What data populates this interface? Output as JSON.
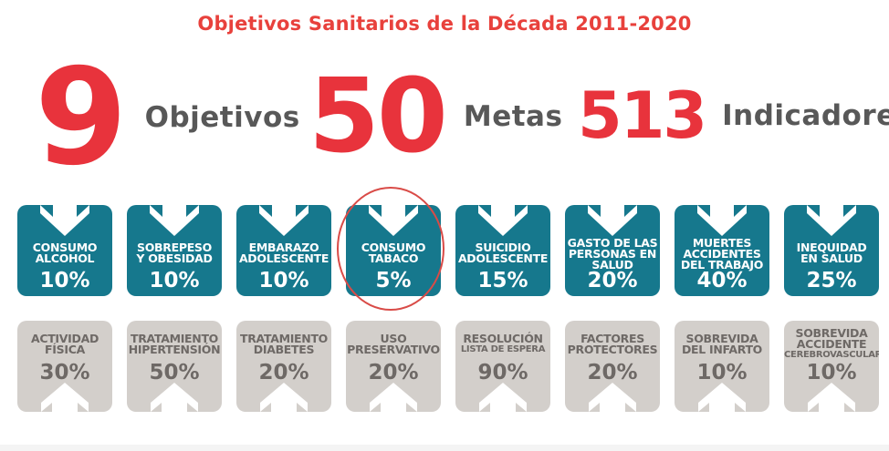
{
  "title": "Objetivos Sanitarios de la Década 2011-2020",
  "stats": [
    {
      "number": "9",
      "label": "Objetivos"
    },
    {
      "number": "50",
      "label": "Metas"
    },
    {
      "number": "513",
      "label": "Indicadores"
    }
  ],
  "colors": {
    "red": "#e8333c",
    "teal": "#16788d",
    "gray": "#d3cfcb",
    "gray_text": "#6e6966"
  },
  "top_row": [
    {
      "lines": [
        "CONSUMO",
        "ALCOHOL"
      ],
      "percent": "10%"
    },
    {
      "lines": [
        "SOBREPESO",
        "Y OBESIDAD"
      ],
      "percent": "10%"
    },
    {
      "lines": [
        "EMBARAZO",
        "ADOLESCENTE"
      ],
      "percent": "10%"
    },
    {
      "lines": [
        "CONSUMO",
        "TABACO"
      ],
      "percent": "5%"
    },
    {
      "lines": [
        "SUICIDIO",
        "ADOLESCENTE"
      ],
      "percent": "15%"
    },
    {
      "lines": [
        "GASTO DE LAS",
        "PERSONAS EN",
        "SALUD"
      ],
      "percent": "20%"
    },
    {
      "lines": [
        "MUERTES",
        "ACCIDENTES",
        "DEL TRABAJO"
      ],
      "percent": "40%"
    },
    {
      "lines": [
        "INEQUIDAD",
        "EN SALUD"
      ],
      "percent": "25%"
    }
  ],
  "bottom_row": [
    {
      "lines": [
        "ACTIVIDAD",
        "FÍSICA"
      ],
      "percent": "30%"
    },
    {
      "lines": [
        "TRATAMIENTO",
        "HIPERTENSIÓN"
      ],
      "percent": "50%"
    },
    {
      "lines": [
        "TRATAMIENTO",
        "DIABETES"
      ],
      "percent": "20%"
    },
    {
      "lines": [
        "USO",
        "PRESERVATIVO"
      ],
      "percent": "20%"
    },
    {
      "lines": [
        "RESOLUCIÓN",
        "LISTA DE ESPERA"
      ],
      "percent": "90%"
    },
    {
      "lines": [
        "FACTORES",
        "PROTECTORES"
      ],
      "percent": "20%"
    },
    {
      "lines": [
        "SOBREVIDA",
        "DEL INFARTO"
      ],
      "percent": "10%"
    },
    {
      "lines": [
        "SOBREVIDA",
        "ACCIDENTE",
        "CEREBROVASCULAR"
      ],
      "percent": "10%"
    }
  ],
  "highlight": {
    "row": "top",
    "index": 3
  }
}
